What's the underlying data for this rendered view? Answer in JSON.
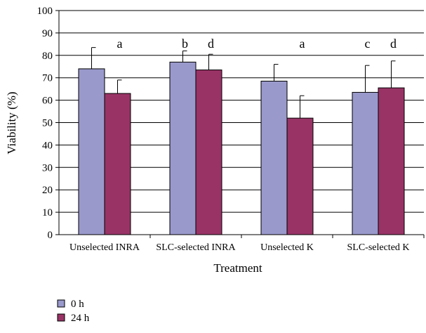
{
  "chart_data": {
    "type": "bar",
    "title": "",
    "xlabel": "Treatment",
    "ylabel": "Viability (%)",
    "ylim": [
      0,
      100
    ],
    "yticks": [
      0,
      10,
      20,
      30,
      40,
      50,
      60,
      70,
      80,
      90,
      100
    ],
    "grid": true,
    "legend_position": "bottom-left",
    "categories": [
      "Unselected INRA",
      "SLC-selected INRA",
      "Unselected K",
      "SLC-selected K"
    ],
    "series": [
      {
        "name": "0 h",
        "color": "#9999cc",
        "values": [
          74,
          77,
          68.5,
          63.5
        ],
        "errors": [
          9.5,
          5,
          7.5,
          12
        ]
      },
      {
        "name": "24 h",
        "color": "#993366",
        "values": [
          63,
          73.5,
          52,
          65.5
        ],
        "errors": [
          6,
          7,
          10,
          12
        ]
      }
    ],
    "annotations": [
      {
        "category": 0,
        "series": [
          1
        ],
        "text": "a"
      },
      {
        "category": 1,
        "series": [
          0
        ],
        "text": "b"
      },
      {
        "category": 1,
        "series": [
          1
        ],
        "text": "d"
      },
      {
        "category": 2,
        "series": [
          1
        ],
        "text": "a"
      },
      {
        "category": 3,
        "series": [
          0
        ],
        "text": "c"
      },
      {
        "category": 3,
        "series": [
          1
        ],
        "text": "d"
      }
    ]
  }
}
